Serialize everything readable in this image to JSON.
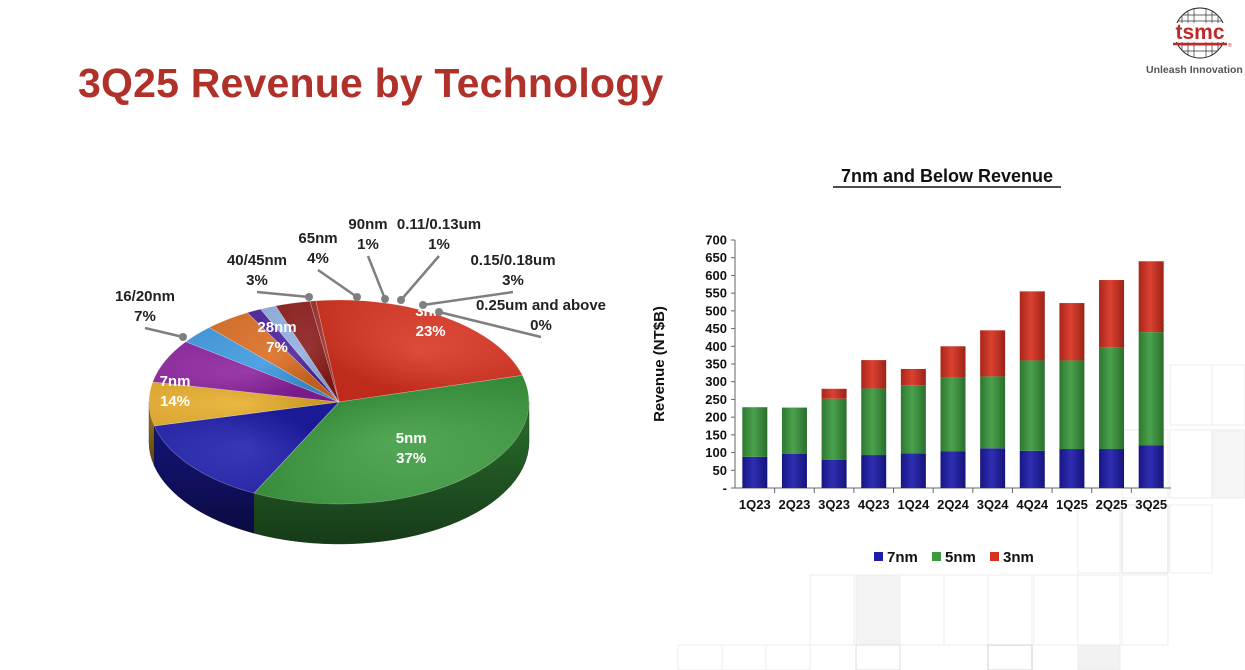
{
  "page": {
    "title": "3Q25 Revenue by Technology",
    "brand": {
      "name": "tsmc",
      "tagline": "Unleash Innovation"
    }
  },
  "colors": {
    "title": "#b0302a",
    "3nm": "#d8311f",
    "5nm": "#3a9a3e",
    "7nm": "#1d1cab",
    "16/20nm": "#e6ad28",
    "28nm": "#8a1f9c",
    "40/45nm": "#3a97e0",
    "65nm": "#d96a1e",
    "90nm": "#4a1e9a",
    "0.11/0.13um": "#8fb0e0",
    "0.15/0.18um": "#8a1a18",
    "0.25um and above": "#9a2a26"
  },
  "chart_data": [
    {
      "type": "pie",
      "title": "",
      "slices": [
        {
          "label": "3nm",
          "percent_text": "23%",
          "value": 23
        },
        {
          "label": "5nm",
          "percent_text": "37%",
          "value": 37
        },
        {
          "label": "7nm",
          "percent_text": "14%",
          "value": 14
        },
        {
          "label": "16/20nm",
          "percent_text": "7%",
          "value": 7
        },
        {
          "label": "28nm",
          "percent_text": "7%",
          "value": 7
        },
        {
          "label": "40/45nm",
          "percent_text": "3%",
          "value": 3
        },
        {
          "label": "65nm",
          "percent_text": "4%",
          "value": 4
        },
        {
          "label": "90nm",
          "percent_text": "1%",
          "value": 1
        },
        {
          "label": "0.11/0.13um",
          "percent_text": "1%",
          "value": 1
        },
        {
          "label": "0.15/0.18um",
          "percent_text": "3%",
          "value": 3
        },
        {
          "label": "0.25um and above",
          "percent_text": "0%",
          "value": 0
        }
      ]
    },
    {
      "type": "bar",
      "stacked": true,
      "title": "7nm and Below Revenue",
      "xlabel": "",
      "ylabel": "Revenue (NT$B)",
      "ylim": [
        0,
        700
      ],
      "yticks": [
        "-",
        "50",
        "100",
        "150",
        "200",
        "250",
        "300",
        "350",
        "400",
        "450",
        "500",
        "550",
        "600",
        "650",
        "700"
      ],
      "categories": [
        "1Q23",
        "2Q23",
        "3Q23",
        "4Q23",
        "1Q24",
        "2Q24",
        "3Q24",
        "4Q24",
        "1Q25",
        "2Q25",
        "3Q25"
      ],
      "series": [
        {
          "name": "7nm",
          "values": [
            88,
            96,
            80,
            93,
            98,
            103,
            112,
            105,
            110,
            110,
            120
          ]
        },
        {
          "name": "5nm",
          "values": [
            140,
            131,
            172,
            188,
            192,
            208,
            203,
            255,
            250,
            287,
            320
          ]
        },
        {
          "name": "3nm",
          "values": [
            0,
            0,
            28,
            80,
            46,
            89,
            130,
            195,
            162,
            190,
            200
          ]
        }
      ],
      "legend": "bottom"
    }
  ]
}
